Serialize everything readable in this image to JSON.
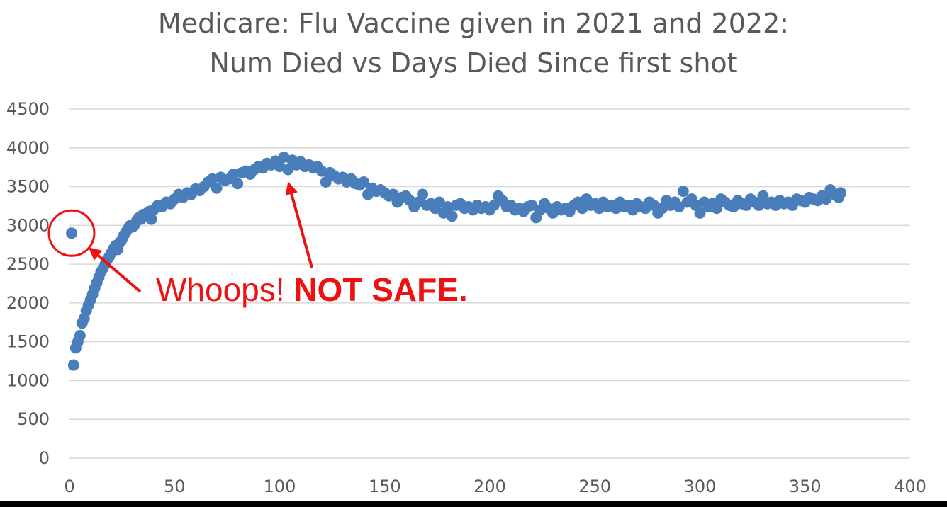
{
  "chart_data": {
    "type": "scatter",
    "title": [
      "Medicare: Flu Vaccine given in 2021 and 2022:",
      "Num Died vs Days Died Since first shot"
    ],
    "xlabel": "",
    "ylabel": "",
    "xlim": [
      0,
      400
    ],
    "ylim": [
      0,
      4500
    ],
    "x_ticks": [
      0,
      50,
      100,
      150,
      200,
      250,
      300,
      350,
      400
    ],
    "y_ticks": [
      0,
      500,
      1000,
      1500,
      2000,
      2500,
      3000,
      3500,
      4000,
      4500
    ],
    "grid": true,
    "legend": "none",
    "series": [
      {
        "color": "#4A7EBB",
        "points": [
          [
            1,
            2900
          ],
          [
            2,
            1200
          ],
          [
            3,
            1420
          ],
          [
            4,
            1500
          ],
          [
            5,
            1580
          ],
          [
            6,
            1740
          ],
          [
            7,
            1800
          ],
          [
            8,
            1900
          ],
          [
            9,
            1970
          ],
          [
            10,
            2040
          ],
          [
            11,
            2110
          ],
          [
            12,
            2190
          ],
          [
            13,
            2260
          ],
          [
            14,
            2330
          ],
          [
            15,
            2400
          ],
          [
            16,
            2450
          ],
          [
            17,
            2500
          ],
          [
            18,
            2560
          ],
          [
            19,
            2600
          ],
          [
            20,
            2650
          ],
          [
            21,
            2700
          ],
          [
            22,
            2740
          ],
          [
            23,
            2690
          ],
          [
            24,
            2780
          ],
          [
            25,
            2820
          ],
          [
            26,
            2880
          ],
          [
            27,
            2920
          ],
          [
            28,
            2960
          ],
          [
            29,
            3000
          ],
          [
            30,
            2980
          ],
          [
            31,
            3010
          ],
          [
            32,
            3060
          ],
          [
            33,
            3100
          ],
          [
            34,
            3080
          ],
          [
            35,
            3140
          ],
          [
            36,
            3120
          ],
          [
            37,
            3160
          ],
          [
            38,
            3180
          ],
          [
            39,
            3080
          ],
          [
            40,
            3200
          ],
          [
            42,
            3260
          ],
          [
            44,
            3240
          ],
          [
            46,
            3300
          ],
          [
            48,
            3280
          ],
          [
            50,
            3340
          ],
          [
            52,
            3400
          ],
          [
            54,
            3360
          ],
          [
            56,
            3420
          ],
          [
            58,
            3400
          ],
          [
            60,
            3470
          ],
          [
            62,
            3450
          ],
          [
            64,
            3500
          ],
          [
            66,
            3560
          ],
          [
            68,
            3600
          ],
          [
            70,
            3480
          ],
          [
            72,
            3620
          ],
          [
            74,
            3580
          ],
          [
            76,
            3600
          ],
          [
            78,
            3660
          ],
          [
            80,
            3540
          ],
          [
            82,
            3680
          ],
          [
            84,
            3700
          ],
          [
            86,
            3660
          ],
          [
            88,
            3720
          ],
          [
            90,
            3760
          ],
          [
            92,
            3740
          ],
          [
            94,
            3800
          ],
          [
            96,
            3780
          ],
          [
            98,
            3830
          ],
          [
            100,
            3760
          ],
          [
            102,
            3880
          ],
          [
            104,
            3720
          ],
          [
            106,
            3840
          ],
          [
            108,
            3780
          ],
          [
            110,
            3820
          ],
          [
            112,
            3760
          ],
          [
            114,
            3780
          ],
          [
            116,
            3740
          ],
          [
            118,
            3760
          ],
          [
            120,
            3700
          ],
          [
            122,
            3560
          ],
          [
            124,
            3680
          ],
          [
            126,
            3640
          ],
          [
            128,
            3600
          ],
          [
            130,
            3620
          ],
          [
            132,
            3560
          ],
          [
            134,
            3600
          ],
          [
            136,
            3540
          ],
          [
            138,
            3520
          ],
          [
            140,
            3560
          ],
          [
            142,
            3400
          ],
          [
            144,
            3480
          ],
          [
            146,
            3440
          ],
          [
            148,
            3460
          ],
          [
            150,
            3420
          ],
          [
            152,
            3380
          ],
          [
            154,
            3400
          ],
          [
            156,
            3300
          ],
          [
            158,
            3360
          ],
          [
            160,
            3380
          ],
          [
            162,
            3320
          ],
          [
            164,
            3240
          ],
          [
            166,
            3300
          ],
          [
            168,
            3400
          ],
          [
            170,
            3260
          ],
          [
            172,
            3280
          ],
          [
            174,
            3220
          ],
          [
            176,
            3300
          ],
          [
            178,
            3160
          ],
          [
            180,
            3240
          ],
          [
            182,
            3120
          ],
          [
            184,
            3260
          ],
          [
            186,
            3280
          ],
          [
            188,
            3220
          ],
          [
            190,
            3240
          ],
          [
            192,
            3200
          ],
          [
            194,
            3260
          ],
          [
            196,
            3220
          ],
          [
            198,
            3240
          ],
          [
            200,
            3200
          ],
          [
            202,
            3260
          ],
          [
            204,
            3380
          ],
          [
            206,
            3320
          ],
          [
            208,
            3240
          ],
          [
            210,
            3260
          ],
          [
            212,
            3200
          ],
          [
            214,
            3220
          ],
          [
            216,
            3180
          ],
          [
            218,
            3240
          ],
          [
            220,
            3260
          ],
          [
            222,
            3100
          ],
          [
            224,
            3200
          ],
          [
            226,
            3280
          ],
          [
            228,
            3220
          ],
          [
            230,
            3160
          ],
          [
            232,
            3240
          ],
          [
            234,
            3200
          ],
          [
            236,
            3220
          ],
          [
            238,
            3180
          ],
          [
            240,
            3260
          ],
          [
            242,
            3300
          ],
          [
            244,
            3220
          ],
          [
            246,
            3340
          ],
          [
            248,
            3260
          ],
          [
            250,
            3280
          ],
          [
            252,
            3220
          ],
          [
            254,
            3300
          ],
          [
            256,
            3240
          ],
          [
            258,
            3260
          ],
          [
            260,
            3220
          ],
          [
            262,
            3300
          ],
          [
            264,
            3240
          ],
          [
            266,
            3260
          ],
          [
            268,
            3200
          ],
          [
            270,
            3280
          ],
          [
            272,
            3240
          ],
          [
            274,
            3220
          ],
          [
            276,
            3300
          ],
          [
            278,
            3260
          ],
          [
            280,
            3160
          ],
          [
            282,
            3220
          ],
          [
            284,
            3320
          ],
          [
            286,
            3260
          ],
          [
            288,
            3300
          ],
          [
            290,
            3240
          ],
          [
            292,
            3440
          ],
          [
            294,
            3300
          ],
          [
            296,
            3340
          ],
          [
            298,
            3260
          ],
          [
            300,
            3160
          ],
          [
            302,
            3300
          ],
          [
            304,
            3240
          ],
          [
            306,
            3280
          ],
          [
            308,
            3220
          ],
          [
            310,
            3340
          ],
          [
            312,
            3300
          ],
          [
            314,
            3260
          ],
          [
            316,
            3240
          ],
          [
            318,
            3320
          ],
          [
            320,
            3280
          ],
          [
            322,
            3260
          ],
          [
            324,
            3340
          ],
          [
            326,
            3300
          ],
          [
            328,
            3260
          ],
          [
            330,
            3380
          ],
          [
            332,
            3280
          ],
          [
            334,
            3300
          ],
          [
            336,
            3260
          ],
          [
            338,
            3320
          ],
          [
            340,
            3280
          ],
          [
            342,
            3300
          ],
          [
            344,
            3260
          ],
          [
            346,
            3340
          ],
          [
            348,
            3320
          ],
          [
            350,
            3300
          ],
          [
            352,
            3360
          ],
          [
            354,
            3340
          ],
          [
            356,
            3320
          ],
          [
            358,
            3380
          ],
          [
            360,
            3340
          ],
          [
            362,
            3460
          ],
          [
            364,
            3400
          ],
          [
            366,
            3360
          ],
          [
            367,
            3420
          ]
        ]
      }
    ],
    "annotations": {
      "callout_normal": "Whoops! ",
      "callout_bold": "NOT SAFE.",
      "color": "#EE1111",
      "highlighted_point": [
        1,
        2900
      ],
      "arrow_targets": [
        [
          1,
          2900
        ],
        [
          103,
          3730
        ]
      ]
    }
  }
}
